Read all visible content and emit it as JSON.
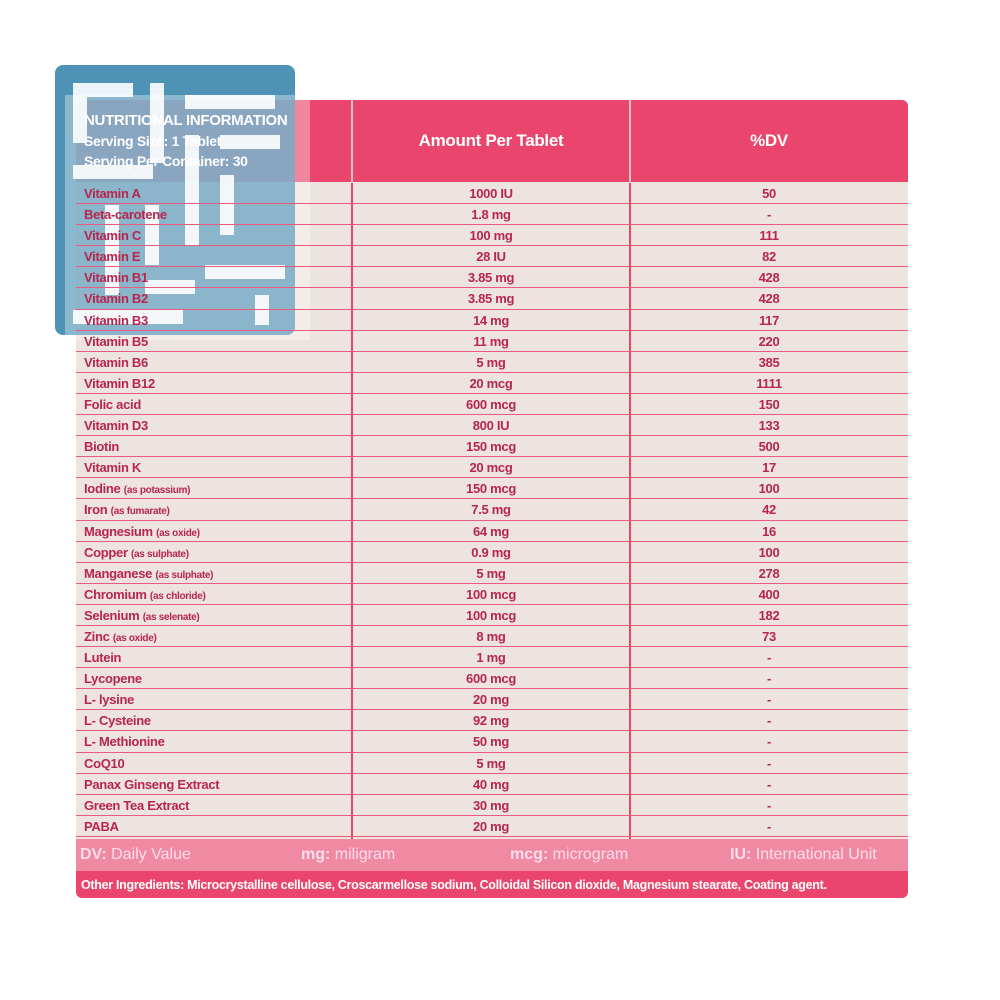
{
  "header": {
    "title": "NUTRITIONAL INFORMATION",
    "serving_size": "Serving Size: 1 Tablet",
    "servings": "Serving Per Container: 30",
    "col_amount": "Amount Per Tablet",
    "col_dv": "%DV"
  },
  "rows": [
    {
      "name": "Vitamin A",
      "note": "",
      "amount": "1000 IU",
      "dv": "50"
    },
    {
      "name": "Beta-carotene",
      "note": "",
      "amount": "1.8 mg",
      "dv": "-"
    },
    {
      "name": "Vitamin C",
      "note": "",
      "amount": "100 mg",
      "dv": "111"
    },
    {
      "name": "Vitamin E",
      "note": "",
      "amount": "28 IU",
      "dv": "82"
    },
    {
      "name": "Vitamin B1",
      "note": "",
      "amount": "3.85 mg",
      "dv": "428"
    },
    {
      "name": "Vitamin B2",
      "note": "",
      "amount": "3.85 mg",
      "dv": "428"
    },
    {
      "name": "Vitamin B3",
      "note": "",
      "amount": "14 mg",
      "dv": "117"
    },
    {
      "name": "Vitamin B5",
      "note": "",
      "amount": "11 mg",
      "dv": "220"
    },
    {
      "name": "Vitamin B6",
      "note": "",
      "amount": "5 mg",
      "dv": "385"
    },
    {
      "name": "Vitamin B12",
      "note": "",
      "amount": "20 mcg",
      "dv": "1111"
    },
    {
      "name": "Folic acid",
      "note": "",
      "amount": "600 mcg",
      "dv": "150"
    },
    {
      "name": "Vitamin D3",
      "note": "",
      "amount": "800 IU",
      "dv": "133"
    },
    {
      "name": "Biotin",
      "note": "",
      "amount": "150 mcg",
      "dv": "500"
    },
    {
      "name": "Vitamin K",
      "note": "",
      "amount": "20 mcg",
      "dv": "17"
    },
    {
      "name": "Iodine",
      "note": "(as potassium)",
      "amount": "150 mcg",
      "dv": "100"
    },
    {
      "name": "Iron",
      "note": "(as fumarate)",
      "amount": "7.5 mg",
      "dv": "42"
    },
    {
      "name": "Magnesium",
      "note": "(as oxide)",
      "amount": "64 mg",
      "dv": "16"
    },
    {
      "name": "Copper",
      "note": "(as sulphate)",
      "amount": "0.9 mg",
      "dv": "100"
    },
    {
      "name": "Manganese",
      "note": "(as sulphate)",
      "amount": "5 mg",
      "dv": "278"
    },
    {
      "name": "Chromium",
      "note": "(as chloride)",
      "amount": "100 mcg",
      "dv": "400"
    },
    {
      "name": "Selenium",
      "note": "(as selenate)",
      "amount": "100 mcg",
      "dv": "182"
    },
    {
      "name": "Zinc",
      "note": "(as oxide)",
      "amount": "8 mg",
      "dv": "73"
    },
    {
      "name": "Lutein",
      "note": "",
      "amount": "1 mg",
      "dv": "-"
    },
    {
      "name": "Lycopene",
      "note": "",
      "amount": "600 mcg",
      "dv": "-"
    },
    {
      "name": "L- lysine",
      "note": "",
      "amount": "20 mg",
      "dv": "-"
    },
    {
      "name": "L- Cysteine",
      "note": "",
      "amount": "92 mg",
      "dv": "-"
    },
    {
      "name": "L- Methionine",
      "note": "",
      "amount": "50 mg",
      "dv": "-"
    },
    {
      "name": "CoQ10",
      "note": "",
      "amount": "5 mg",
      "dv": "-"
    },
    {
      "name": "Panax Ginseng Extract",
      "note": "",
      "amount": "40 mg",
      "dv": "-"
    },
    {
      "name": "Green Tea Extract",
      "note": "",
      "amount": "30 mg",
      "dv": "-"
    },
    {
      "name": "PABA",
      "note": "",
      "amount": "20 mg",
      "dv": "-"
    }
  ],
  "legend": [
    {
      "key": "DV:",
      "text": " Daily Value"
    },
    {
      "key": "mg:",
      "text": " miligram"
    },
    {
      "key": "mcg:",
      "text": " microgram"
    },
    {
      "key": "IU:",
      "text": " International Unit"
    }
  ],
  "other_ingredients": "Other Ingredients: Microcrystalline cellulose, Croscarmellose sodium, Colloidal Silicon dioxide, Magnesium stearate, Coating agent.",
  "colors": {
    "accent": "#ea456c",
    "row_bg": "#ede3df",
    "text": "#b8254e",
    "watermark": "#2f7fa8"
  },
  "watermark_icon": "logo-watermark"
}
